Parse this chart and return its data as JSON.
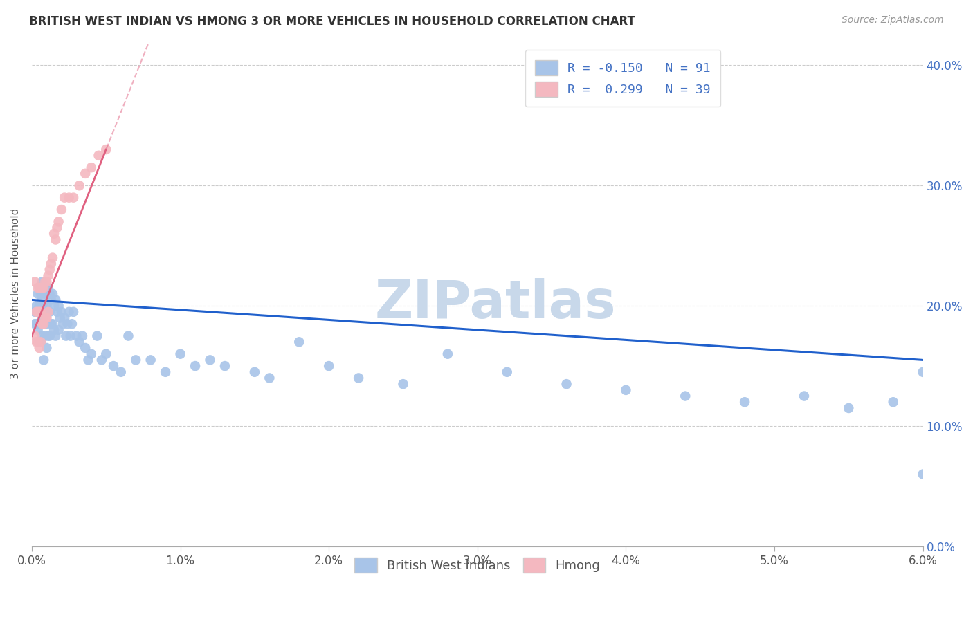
{
  "title": "BRITISH WEST INDIAN VS HMONG 3 OR MORE VEHICLES IN HOUSEHOLD CORRELATION CHART",
  "source": "Source: ZipAtlas.com",
  "ylabel": "3 or more Vehicles in Household",
  "xlim": [
    0.0,
    0.06
  ],
  "ylim": [
    0.0,
    0.42
  ],
  "legend_r_blue": "R = -0.150",
  "legend_n_blue": "N = 91",
  "legend_r_pink": "R =  0.299",
  "legend_n_pink": "N = 39",
  "blue_color": "#a8c4e8",
  "pink_color": "#f4b8c0",
  "blue_line_color": "#2060cc",
  "pink_line_color": "#e06080",
  "watermark": "ZIPatlas",
  "watermark_color": "#c8d8ea",
  "blue_x": [
    0.0002,
    0.0002,
    0.0003,
    0.0003,
    0.0004,
    0.0004,
    0.0004,
    0.0005,
    0.0005,
    0.0005,
    0.0006,
    0.0006,
    0.0006,
    0.0007,
    0.0007,
    0.0007,
    0.0007,
    0.0008,
    0.0008,
    0.0008,
    0.0008,
    0.0009,
    0.0009,
    0.0009,
    0.001,
    0.001,
    0.001,
    0.001,
    0.0011,
    0.0011,
    0.0011,
    0.0012,
    0.0012,
    0.0012,
    0.0013,
    0.0013,
    0.0014,
    0.0014,
    0.0015,
    0.0015,
    0.0016,
    0.0016,
    0.0017,
    0.0018,
    0.0018,
    0.0019,
    0.002,
    0.0021,
    0.0022,
    0.0023,
    0.0024,
    0.0025,
    0.0026,
    0.0027,
    0.0028,
    0.003,
    0.0032,
    0.0034,
    0.0036,
    0.0038,
    0.004,
    0.0044,
    0.0047,
    0.005,
    0.0055,
    0.006,
    0.0065,
    0.007,
    0.008,
    0.009,
    0.01,
    0.011,
    0.012,
    0.013,
    0.015,
    0.016,
    0.018,
    0.02,
    0.022,
    0.025,
    0.028,
    0.032,
    0.036,
    0.04,
    0.044,
    0.048,
    0.052,
    0.055,
    0.058,
    0.06,
    0.06
  ],
  "blue_y": [
    0.195,
    0.185,
    0.2,
    0.185,
    0.21,
    0.195,
    0.18,
    0.215,
    0.2,
    0.185,
    0.21,
    0.195,
    0.17,
    0.22,
    0.205,
    0.19,
    0.175,
    0.215,
    0.2,
    0.185,
    0.155,
    0.21,
    0.195,
    0.175,
    0.215,
    0.2,
    0.185,
    0.165,
    0.215,
    0.195,
    0.175,
    0.21,
    0.195,
    0.175,
    0.205,
    0.185,
    0.21,
    0.185,
    0.2,
    0.18,
    0.205,
    0.175,
    0.195,
    0.2,
    0.18,
    0.19,
    0.195,
    0.185,
    0.19,
    0.175,
    0.185,
    0.195,
    0.175,
    0.185,
    0.195,
    0.175,
    0.17,
    0.175,
    0.165,
    0.155,
    0.16,
    0.175,
    0.155,
    0.16,
    0.15,
    0.145,
    0.175,
    0.155,
    0.155,
    0.145,
    0.16,
    0.15,
    0.155,
    0.15,
    0.145,
    0.14,
    0.17,
    0.15,
    0.14,
    0.135,
    0.16,
    0.145,
    0.135,
    0.13,
    0.125,
    0.12,
    0.125,
    0.115,
    0.12,
    0.145,
    0.06
  ],
  "pink_x": [
    0.0002,
    0.0002,
    0.0003,
    0.0003,
    0.0004,
    0.0004,
    0.0004,
    0.0005,
    0.0005,
    0.0005,
    0.0006,
    0.0006,
    0.0006,
    0.0007,
    0.0007,
    0.0008,
    0.0008,
    0.0009,
    0.0009,
    0.001,
    0.001,
    0.0011,
    0.0011,
    0.0012,
    0.0013,
    0.0014,
    0.0015,
    0.0016,
    0.0017,
    0.0018,
    0.002,
    0.0022,
    0.0025,
    0.0028,
    0.0032,
    0.0036,
    0.004,
    0.0045,
    0.005
  ],
  "pink_y": [
    0.22,
    0.175,
    0.195,
    0.17,
    0.215,
    0.195,
    0.17,
    0.215,
    0.195,
    0.165,
    0.215,
    0.195,
    0.17,
    0.215,
    0.185,
    0.215,
    0.185,
    0.22,
    0.19,
    0.22,
    0.19,
    0.225,
    0.195,
    0.23,
    0.235,
    0.24,
    0.26,
    0.255,
    0.265,
    0.27,
    0.28,
    0.29,
    0.29,
    0.29,
    0.3,
    0.31,
    0.315,
    0.325,
    0.33
  ],
  "blue_trendline_x": [
    0.0,
    0.06
  ],
  "blue_trendline_y": [
    0.205,
    0.155
  ],
  "pink_trendline_x": [
    0.0,
    0.005
  ],
  "pink_trendline_y": [
    0.175,
    0.33
  ]
}
